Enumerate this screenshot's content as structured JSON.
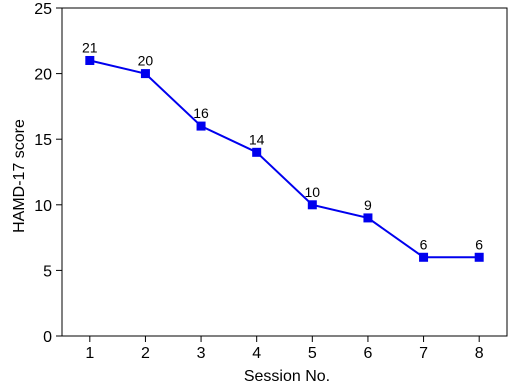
{
  "chart_data": {
    "type": "line",
    "xlabel": "Session No.",
    "ylabel": "HAMD-17 score",
    "x": [
      1,
      2,
      3,
      4,
      5,
      6,
      7,
      8
    ],
    "xlim": [
      0.5,
      8.5
    ],
    "ylim": [
      0,
      25
    ],
    "x_ticks": [
      "1",
      "2",
      "3",
      "4",
      "5",
      "6",
      "7",
      "8"
    ],
    "y_ticks": [
      "0",
      "5",
      "10",
      "15",
      "20",
      "25"
    ],
    "grid": false,
    "series": [
      {
        "values": [
          21,
          20,
          16,
          14,
          10,
          9,
          6,
          6
        ],
        "data_labels": [
          "21",
          "20",
          "16",
          "14",
          "10",
          "9",
          "6",
          "6"
        ],
        "color": "#0000ee",
        "marker": "square"
      }
    ]
  }
}
